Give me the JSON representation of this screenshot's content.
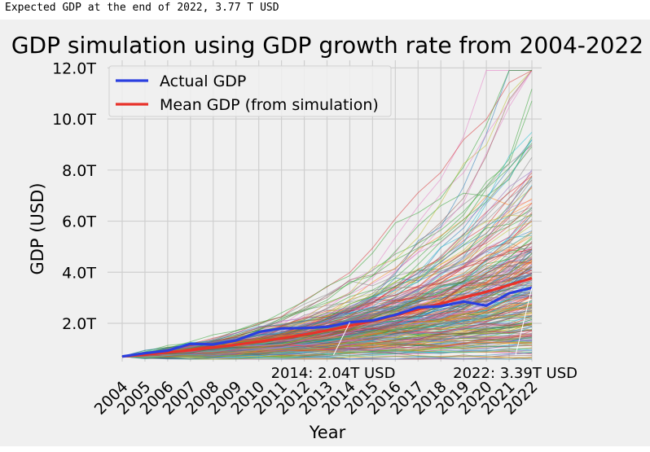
{
  "caption": "Expected GDP at the end of 2022, 3.77 T USD",
  "chart_data": {
    "type": "line",
    "title": "GDP simulation using GDP growth rate from 2004-2022",
    "xlabel": "Year",
    "ylabel": "GDP (USD)",
    "categories": [
      "2004",
      "2005",
      "2006",
      "2007",
      "2008",
      "2009",
      "2010",
      "2011",
      "2012",
      "2013",
      "2014",
      "2015",
      "2016",
      "2017",
      "2018",
      "2019",
      "2020",
      "2021",
      "2022"
    ],
    "y_ticks": [
      2.0,
      4.0,
      6.0,
      8.0,
      10.0,
      12.0
    ],
    "y_tick_labels": [
      "2.0T",
      "4.0T",
      "6.0T",
      "8.0T",
      "10.0T",
      "12.0T"
    ],
    "ylim": [
      0.5,
      12.3
    ],
    "grid": true,
    "legend_position": "top-left",
    "series": [
      {
        "name": "Actual GDP",
        "color": "#2a3fe0",
        "values": [
          0.7,
          0.83,
          0.93,
          1.2,
          1.17,
          1.33,
          1.66,
          1.8,
          1.81,
          1.86,
          2.04,
          2.11,
          2.33,
          2.62,
          2.67,
          2.85,
          2.69,
          3.18,
          3.39
        ]
      },
      {
        "name": "Mean GDP (from simulation)",
        "color": "#e8322a",
        "values": [
          0.7,
          0.77,
          0.86,
          0.95,
          1.05,
          1.16,
          1.28,
          1.41,
          1.56,
          1.72,
          1.9,
          2.09,
          2.31,
          2.55,
          2.77,
          3.01,
          3.23,
          3.5,
          3.77
        ]
      }
    ],
    "simulation": {
      "count": 300,
      "start_value": 0.7,
      "colors": [
        "#1f77b4",
        "#ff7f0e",
        "#2ca02c",
        "#d62728",
        "#9467bd",
        "#8c564b",
        "#e377c2",
        "#7f7f7f",
        "#bcbd22",
        "#17becf"
      ]
    },
    "annotations": [
      {
        "text": "2014: 2.04T USD",
        "x": "2014",
        "y": 2.04
      },
      {
        "text": "2022: 3.39T USD",
        "x": "2022",
        "y": 3.39
      }
    ]
  }
}
